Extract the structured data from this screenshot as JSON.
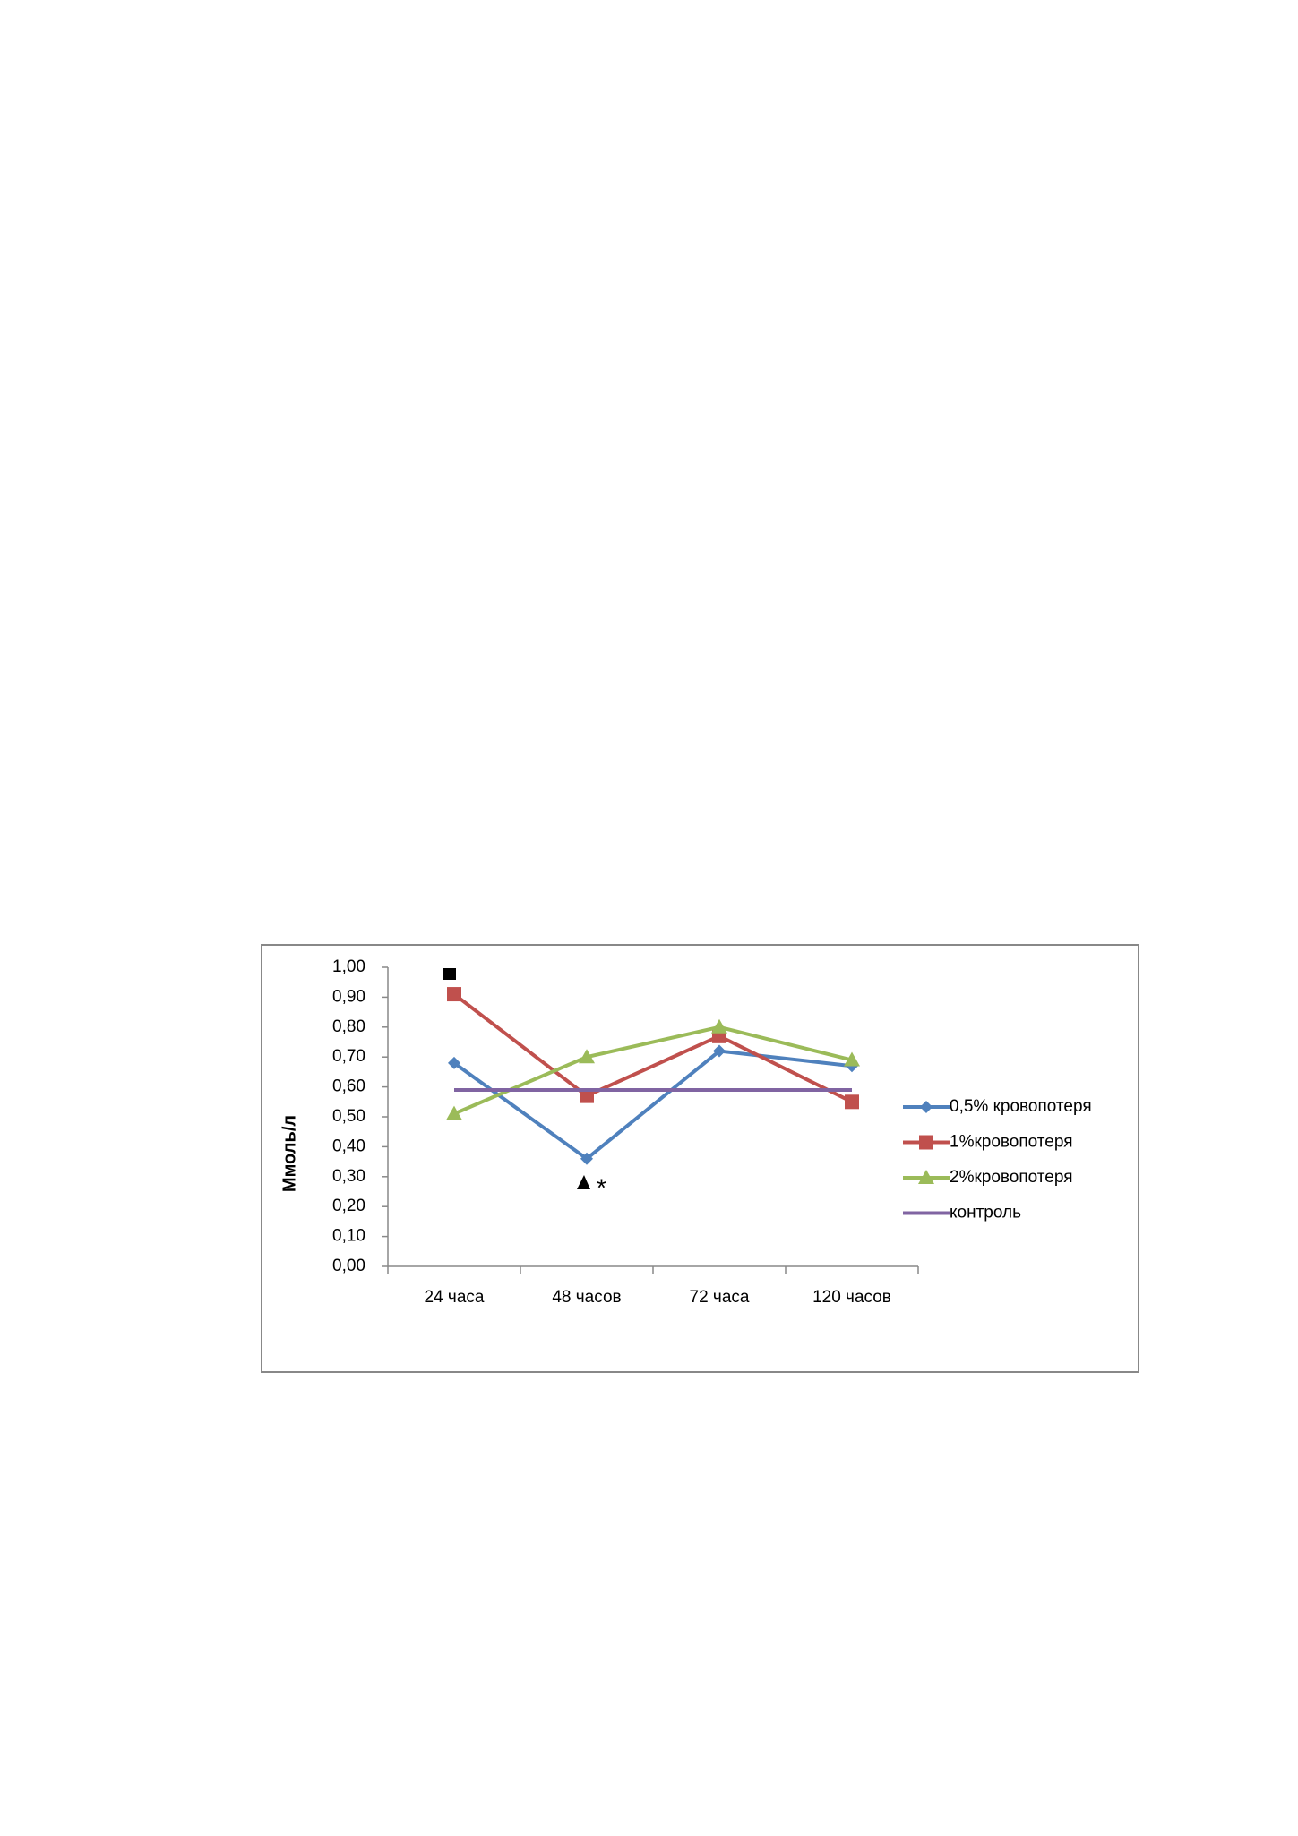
{
  "chart_data": {
    "type": "line",
    "ylabel": "Ммоль/л",
    "categories": [
      "24 часа",
      "48 часов",
      "72 часа",
      "120 часов"
    ],
    "series": [
      {
        "name": "0,5% кровопотеря",
        "color": "#4f81bd",
        "marker": "diamond",
        "values": [
          0.68,
          0.36,
          0.72,
          0.67
        ]
      },
      {
        "name": "1%кровопотеря",
        "color": "#c0504d",
        "marker": "square",
        "values": [
          0.91,
          0.57,
          0.77,
          0.55
        ]
      },
      {
        "name": "2%кровопотеря",
        "color": "#9bbb59",
        "marker": "triangle",
        "values": [
          0.51,
          0.7,
          0.8,
          0.69
        ]
      },
      {
        "name": "контроль",
        "color": "#8064a2",
        "marker": "none",
        "values": [
          0.59,
          0.59,
          0.59,
          0.59
        ]
      }
    ],
    "ylim": [
      0,
      1
    ],
    "yticks": [
      {
        "value": 0,
        "label": "0,00"
      },
      {
        "value": 0.1,
        "label": "0,10"
      },
      {
        "value": 0.2,
        "label": "0,20"
      },
      {
        "value": 0.3,
        "label": "0,30"
      },
      {
        "value": 0.4,
        "label": "0,40"
      },
      {
        "value": 0.5,
        "label": "0,50"
      },
      {
        "value": 0.6,
        "label": "0,60"
      },
      {
        "value": 0.7,
        "label": "0,70"
      },
      {
        "value": 0.8,
        "label": "0,80"
      },
      {
        "value": 0.9,
        "label": "0,90"
      },
      {
        "value": 1,
        "label": "1,00"
      }
    ],
    "annotation": "*",
    "legend": "right"
  }
}
